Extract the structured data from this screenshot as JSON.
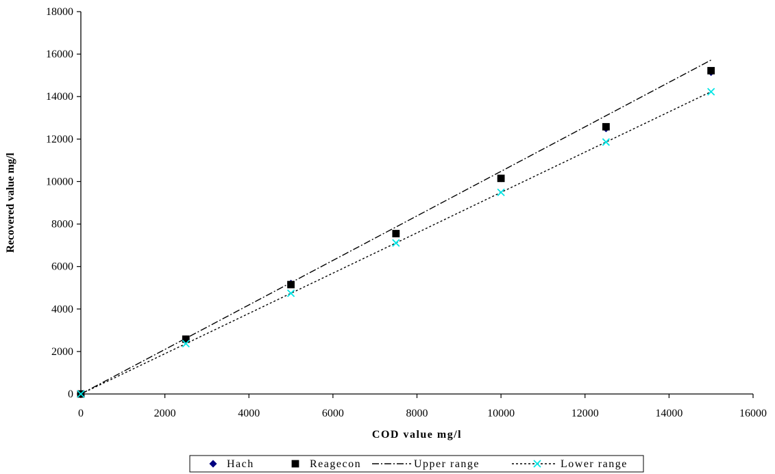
{
  "chart_data": {
    "type": "scatter",
    "title": "",
    "xlabel": "COD value mg/l",
    "ylabel": "Recovered value mg/l",
    "xlim": [
      0,
      16000
    ],
    "ylim": [
      0,
      18000
    ],
    "xticks": [
      0,
      2000,
      4000,
      6000,
      8000,
      10000,
      12000,
      14000,
      16000
    ],
    "yticks": [
      0,
      2000,
      4000,
      6000,
      8000,
      10000,
      12000,
      14000,
      16000,
      18000
    ],
    "grid": false,
    "legend_position": "bottom",
    "series": [
      {
        "name": "Hach",
        "kind": "scatter",
        "marker": "diamond",
        "color": "#000080",
        "x": [
          0,
          2500,
          5000,
          7500,
          10000,
          12500,
          15000
        ],
        "y": [
          0,
          2580,
          5200,
          7550,
          10150,
          12500,
          15150
        ]
      },
      {
        "name": "Reagecon",
        "kind": "scatter",
        "marker": "square",
        "color": "#000000",
        "x": [
          0,
          2500,
          5000,
          7500,
          10000,
          12500,
          15000
        ],
        "y": [
          0,
          2580,
          5150,
          7550,
          10150,
          12580,
          15220
        ]
      },
      {
        "name": "Upper range",
        "kind": "line",
        "dash": "dashdot",
        "color": "#000000",
        "x": [
          0,
          2500,
          5000,
          7500,
          10000,
          12500,
          15000
        ],
        "y": [
          0,
          2620,
          5240,
          7860,
          10480,
          13100,
          15720
        ]
      },
      {
        "name": "Lower range",
        "kind": "line",
        "dash": "dotted",
        "marker": "x",
        "color": "#00e5e5",
        "line_color": "#000000",
        "x": [
          0,
          2500,
          5000,
          7500,
          10000,
          12500,
          15000
        ],
        "y": [
          0,
          2370,
          4740,
          7110,
          9490,
          11860,
          14230
        ]
      }
    ]
  }
}
